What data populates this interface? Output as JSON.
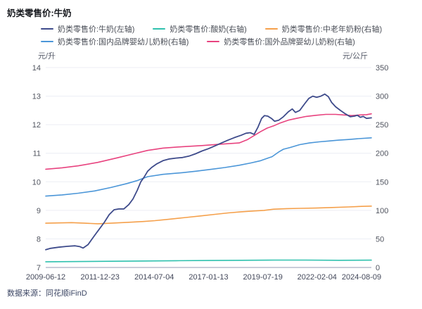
{
  "title": "奶类零售价:牛奶",
  "source_note": "数据来源：同花顺iFinD",
  "axes": {
    "left_unit": "元/升",
    "right_unit": "元/公斤"
  },
  "chart_data": {
    "type": "line",
    "title": "奶类零售价:牛奶",
    "grid": true,
    "legend_position": "top",
    "x_range": [
      "2009-06-12",
      "2024-08-09"
    ],
    "x_tick_labels": [
      "2009-06-12",
      "2011-12-23",
      "2014-07-04",
      "2017-01-13",
      "2019-07-19",
      "2022-02-04",
      "2024-08-09"
    ],
    "left_axis": {
      "unit": "元/升",
      "min": 7,
      "max": 14,
      "ticks": [
        14,
        13,
        12,
        11,
        10,
        9,
        8,
        7
      ]
    },
    "right_axis": {
      "unit": "元/公斤",
      "min": 0,
      "max": 350,
      "ticks": [
        350,
        300,
        250,
        200,
        150,
        100,
        50,
        0
      ]
    },
    "series": [
      {
        "key": "milk",
        "name": "奶类零售价:牛奶(左轴)",
        "axis": "left",
        "color": "#3e4b8b",
        "legend_row": 1,
        "points": [
          [
            0,
            7.62
          ],
          [
            0.015,
            7.67
          ],
          [
            0.04,
            7.71
          ],
          [
            0.065,
            7.74
          ],
          [
            0.09,
            7.76
          ],
          [
            0.105,
            7.73
          ],
          [
            0.115,
            7.68
          ],
          [
            0.13,
            7.8
          ],
          [
            0.15,
            8.12
          ],
          [
            0.165,
            8.35
          ],
          [
            0.18,
            8.58
          ],
          [
            0.195,
            8.85
          ],
          [
            0.21,
            9.02
          ],
          [
            0.225,
            9.05
          ],
          [
            0.24,
            9.05
          ],
          [
            0.255,
            9.2
          ],
          [
            0.268,
            9.4
          ],
          [
            0.281,
            9.7
          ],
          [
            0.292,
            10.0
          ],
          [
            0.302,
            10.16
          ],
          [
            0.313,
            10.37
          ],
          [
            0.325,
            10.5
          ],
          [
            0.34,
            10.62
          ],
          [
            0.36,
            10.74
          ],
          [
            0.38,
            10.8
          ],
          [
            0.4,
            10.83
          ],
          [
            0.42,
            10.85
          ],
          [
            0.44,
            10.9
          ],
          [
            0.46,
            10.98
          ],
          [
            0.48,
            11.08
          ],
          [
            0.5,
            11.16
          ],
          [
            0.52,
            11.26
          ],
          [
            0.54,
            11.36
          ],
          [
            0.56,
            11.46
          ],
          [
            0.58,
            11.55
          ],
          [
            0.6,
            11.63
          ],
          [
            0.615,
            11.7
          ],
          [
            0.628,
            11.72
          ],
          [
            0.64,
            11.66
          ],
          [
            0.652,
            11.92
          ],
          [
            0.663,
            12.22
          ],
          [
            0.672,
            12.32
          ],
          [
            0.682,
            12.3
          ],
          [
            0.693,
            12.22
          ],
          [
            0.703,
            12.12
          ],
          [
            0.716,
            12.16
          ],
          [
            0.73,
            12.28
          ],
          [
            0.745,
            12.45
          ],
          [
            0.757,
            12.55
          ],
          [
            0.767,
            12.43
          ],
          [
            0.78,
            12.5
          ],
          [
            0.795,
            12.73
          ],
          [
            0.808,
            12.92
          ],
          [
            0.82,
            13.0
          ],
          [
            0.832,
            12.96
          ],
          [
            0.845,
            13.0
          ],
          [
            0.857,
            13.07
          ],
          [
            0.868,
            12.98
          ],
          [
            0.878,
            12.78
          ],
          [
            0.89,
            12.63
          ],
          [
            0.905,
            12.5
          ],
          [
            0.92,
            12.38
          ],
          [
            0.935,
            12.28
          ],
          [
            0.948,
            12.3
          ],
          [
            0.957,
            12.33
          ],
          [
            0.966,
            12.26
          ],
          [
            0.975,
            12.29
          ],
          [
            0.985,
            12.22
          ],
          [
            1,
            12.24
          ]
        ]
      },
      {
        "key": "yogurt",
        "name": "奶类零售价:酸奶(右轴)",
        "axis": "right",
        "color": "#2fc1ae",
        "legend_row": 1,
        "points": [
          [
            0,
            10
          ],
          [
            0.1,
            10.3
          ],
          [
            0.2,
            10.8
          ],
          [
            0.3,
            11.3
          ],
          [
            0.4,
            11.8
          ],
          [
            0.5,
            12.2
          ],
          [
            0.6,
            12.6
          ],
          [
            0.7,
            12.9
          ],
          [
            0.8,
            12.9
          ],
          [
            0.9,
            12.6
          ],
          [
            1,
            12.8
          ]
        ]
      },
      {
        "key": "middle-aged-milk-powder",
        "name": "奶类零售价:中老年奶粉(右轴)",
        "axis": "right",
        "color": "#f5a04b",
        "legend_row": 1,
        "points": [
          [
            0,
            77.5
          ],
          [
            0.04,
            78
          ],
          [
            0.08,
            78.5
          ],
          [
            0.12,
            77.5
          ],
          [
            0.16,
            76.5
          ],
          [
            0.2,
            77.5
          ],
          [
            0.25,
            79
          ],
          [
            0.3,
            80.5
          ],
          [
            0.335,
            82
          ],
          [
            0.38,
            84.5
          ],
          [
            0.43,
            87.5
          ],
          [
            0.48,
            90.5
          ],
          [
            0.52,
            93
          ],
          [
            0.56,
            95.5
          ],
          [
            0.6,
            97.5
          ],
          [
            0.64,
            99
          ],
          [
            0.67,
            100
          ],
          [
            0.7,
            102
          ],
          [
            0.74,
            103
          ],
          [
            0.78,
            103.5
          ],
          [
            0.83,
            104
          ],
          [
            0.88,
            105
          ],
          [
            0.93,
            106
          ],
          [
            0.97,
            107
          ],
          [
            1,
            107.5
          ]
        ]
      },
      {
        "key": "domestic-infant-formula",
        "name": "奶类零售价:国内品牌婴幼儿奶粉(右轴)",
        "axis": "right",
        "color": "#4b96d8",
        "legend_row": 2,
        "points": [
          [
            0,
            125
          ],
          [
            0.05,
            127
          ],
          [
            0.1,
            130
          ],
          [
            0.15,
            134
          ],
          [
            0.2,
            140
          ],
          [
            0.25,
            147
          ],
          [
            0.28,
            152
          ],
          [
            0.313,
            159
          ],
          [
            0.36,
            163
          ],
          [
            0.42,
            166
          ],
          [
            0.46,
            168.5
          ],
          [
            0.51,
            172
          ],
          [
            0.55,
            175
          ],
          [
            0.594,
            179
          ],
          [
            0.63,
            183
          ],
          [
            0.66,
            187
          ],
          [
            0.68,
            191
          ],
          [
            0.695,
            194
          ],
          [
            0.715,
            202
          ],
          [
            0.73,
            207
          ],
          [
            0.75,
            210
          ],
          [
            0.78,
            215
          ],
          [
            0.81,
            218
          ],
          [
            0.84,
            220
          ],
          [
            0.87,
            221.5
          ],
          [
            0.9,
            223
          ],
          [
            0.93,
            224
          ],
          [
            0.96,
            225.5
          ],
          [
            1,
            227
          ]
        ]
      },
      {
        "key": "foreign-infant-formula",
        "name": "奶类零售价:国外品牌婴幼儿奶粉(右轴)",
        "axis": "right",
        "color": "#e8437f",
        "legend_row": 2,
        "points": [
          [
            0,
            172
          ],
          [
            0.05,
            174.5
          ],
          [
            0.1,
            178
          ],
          [
            0.16,
            184
          ],
          [
            0.22,
            192
          ],
          [
            0.27,
            199
          ],
          [
            0.313,
            205
          ],
          [
            0.36,
            209
          ],
          [
            0.42,
            211.5
          ],
          [
            0.48,
            213.5
          ],
          [
            0.53,
            215.5
          ],
          [
            0.594,
            218
          ],
          [
            0.62,
            224
          ],
          [
            0.637,
            230
          ],
          [
            0.66,
            238
          ],
          [
            0.68,
            244
          ],
          [
            0.7,
            248
          ],
          [
            0.72,
            253
          ],
          [
            0.745,
            258
          ],
          [
            0.77,
            261
          ],
          [
            0.8,
            264.5
          ],
          [
            0.83,
            266.5
          ],
          [
            0.86,
            268
          ],
          [
            0.89,
            268
          ],
          [
            0.915,
            267
          ],
          [
            0.94,
            266
          ],
          [
            0.965,
            267
          ],
          [
            0.985,
            267.5
          ],
          [
            1,
            269
          ]
        ]
      }
    ]
  }
}
